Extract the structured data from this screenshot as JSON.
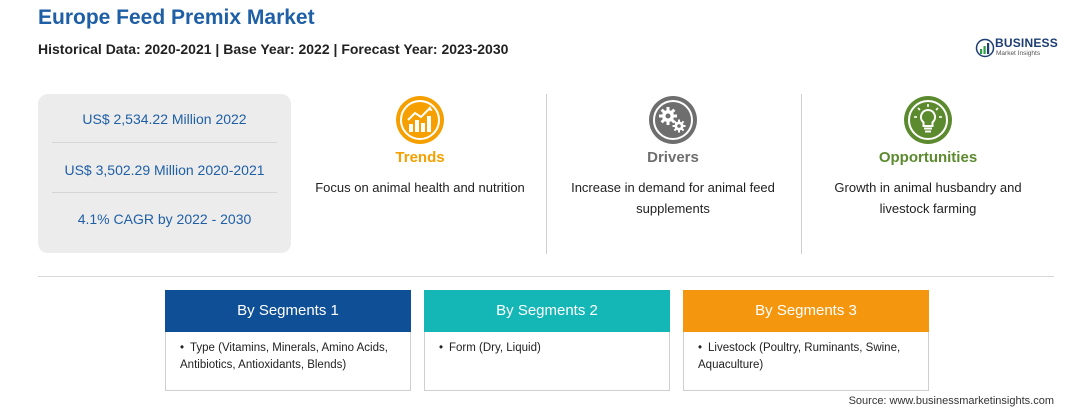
{
  "header": {
    "title": "Europe Feed Premix Market",
    "subtitle": "Historical Data: 2020-2021 | Base Year: 2022 | Forecast Year: 2023-2030"
  },
  "logo": {
    "name": "BUSINESS",
    "tagline": "Market Insights",
    "color": "#1d3e72",
    "accent": "#2e9e4a"
  },
  "stats": [
    "US$ 2,534.22 Million 2022",
    "US$ 3,502.29 Million 2020-2021",
    "4.1% CAGR by 2022 - 2030"
  ],
  "columns": [
    {
      "heading": "Trends",
      "text": "Focus on animal health and nutrition",
      "color": "#f5a000",
      "icon": "growth-chart-icon"
    },
    {
      "heading": "Drivers",
      "text": "Increase in demand for animal feed supplements",
      "color": "#6e6e6e",
      "icon": "gears-icon"
    },
    {
      "heading": "Opportunities",
      "text": "Growth in animal husbandry and livestock farming",
      "color": "#5c8a2e",
      "icon": "lightbulb-icon"
    }
  ],
  "segments": [
    {
      "title": "By Segments 1",
      "item": "Type (Vitamins, Minerals, Amino Acids, Antibiotics, Antioxidants, Blends)",
      "color": "#0f4f95"
    },
    {
      "title": "By Segments 2",
      "item": "Form (Dry, Liquid)",
      "color": "#14b6b6"
    },
    {
      "title": "By Segments 3",
      "item": "Livestock (Poultry, Ruminants, Swine, Aquaculture)",
      "color": "#f5960f"
    }
  ],
  "source": "Source: www.businessmarketinsights.com"
}
